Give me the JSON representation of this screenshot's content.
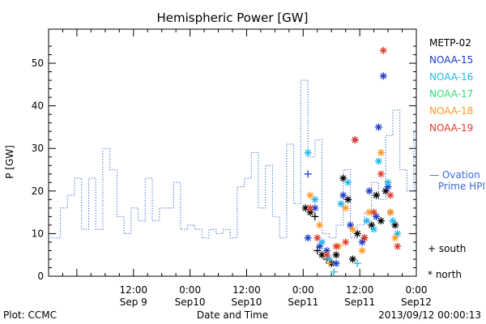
{
  "chart_data": {
    "type": "scatter",
    "title": "Hemispheric Power [GW]",
    "xlabel": "Date and Time",
    "ylabel": "P [GW]",
    "ylim": [
      0,
      58
    ],
    "xlim": [
      "2013-09-08 18:00",
      "2013-09-12 00:00"
    ],
    "y_ticks": [
      0,
      10,
      20,
      30,
      40,
      50
    ],
    "x_ticks": [
      {
        "x": "2013-09-09 12:00",
        "line1": "12:00",
        "line2": "Sep 9"
      },
      {
        "x": "2013-09-10 00:00",
        "line1": "0:00",
        "line2": "Sep10"
      },
      {
        "x": "2013-09-10 12:00",
        "line1": "12:00",
        "line2": "Sep10"
      },
      {
        "x": "2013-09-11 00:00",
        "line1": "0:00",
        "line2": "Sep11"
      },
      {
        "x": "2013-09-11 12:00",
        "line1": "12:00",
        "line2": "Sep11"
      },
      {
        "x": "2013-09-12 00:00",
        "line1": "0:00",
        "line2": "Sep12"
      }
    ],
    "legend": [
      {
        "name": "METP-02",
        "color": "#000000"
      },
      {
        "name": "NOAA-15",
        "color": "#1a3acc"
      },
      {
        "name": "NOAA-16",
        "color": "#22b8e8"
      },
      {
        "name": "NOAA-17",
        "color": "#33dd77"
      },
      {
        "name": "NOAA-18",
        "color": "#ff9922"
      },
      {
        "name": "NOAA-19",
        "color": "#e23a2a"
      }
    ],
    "ovation": {
      "name": "Ovation Prime HPI",
      "color": "#3a6ad8",
      "x": [
        "2013-09-08 18:00",
        "2013-09-08 20:30",
        "2013-09-08 22:00",
        "2013-09-08 23:30",
        "2013-09-09 01:00",
        "2013-09-09 02:30",
        "2013-09-09 04:00",
        "2013-09-09 05:30",
        "2013-09-09 07:00",
        "2013-09-09 08:30",
        "2013-09-09 10:00",
        "2013-09-09 11:30",
        "2013-09-09 13:00",
        "2013-09-09 14:30",
        "2013-09-09 16:00",
        "2013-09-09 17:30",
        "2013-09-09 19:00",
        "2013-09-09 20:30",
        "2013-09-09 22:00",
        "2013-09-09 23:30",
        "2013-09-10 01:00",
        "2013-09-10 02:30",
        "2013-09-10 04:00",
        "2013-09-10 05:30",
        "2013-09-10 07:00",
        "2013-09-10 08:30",
        "2013-09-10 10:00",
        "2013-09-10 11:30",
        "2013-09-10 13:00",
        "2013-09-10 14:30",
        "2013-09-10 16:00",
        "2013-09-10 17:30",
        "2013-09-10 19:00",
        "2013-09-10 20:30",
        "2013-09-10 22:00",
        "2013-09-10 23:30",
        "2013-09-11 01:00",
        "2013-09-11 02:30",
        "2013-09-11 04:00",
        "2013-09-11 05:30",
        "2013-09-11 07:00",
        "2013-09-11 08:30",
        "2013-09-11 10:00",
        "2013-09-11 11:30",
        "2013-09-11 13:00",
        "2013-09-11 14:30",
        "2013-09-11 16:00",
        "2013-09-11 17:30",
        "2013-09-11 19:00",
        "2013-09-11 20:30",
        "2013-09-11 22:00",
        "2013-09-11 23:30"
      ],
      "y": [
        9,
        16,
        19,
        23,
        11,
        23,
        11,
        30,
        25,
        14,
        10,
        16,
        13,
        23,
        13,
        16,
        16,
        22,
        11,
        12,
        11,
        9,
        11,
        10,
        11,
        9,
        21,
        23,
        29,
        16,
        26,
        14,
        9,
        31,
        17,
        46,
        28,
        32,
        10,
        9,
        12,
        25,
        9,
        12,
        15,
        22,
        18,
        33,
        39,
        25,
        20,
        34
      ]
    },
    "points": [
      {
        "sat": "METP-02",
        "marker": "north",
        "x": "2013-09-11 00:30",
        "y": 16
      },
      {
        "sat": "METP-02",
        "marker": "north",
        "x": "2013-09-11 01:30",
        "y": 15
      },
      {
        "sat": "METP-02",
        "marker": "south",
        "x": "2013-09-11 02:30",
        "y": 14
      },
      {
        "sat": "METP-02",
        "marker": "south",
        "x": "2013-09-11 03:00",
        "y": 6
      },
      {
        "sat": "METP-02",
        "marker": "north",
        "x": "2013-09-11 04:00",
        "y": 5
      },
      {
        "sat": "METP-02",
        "marker": "south",
        "x": "2013-09-11 05:00",
        "y": 4
      },
      {
        "sat": "METP-02",
        "marker": "north",
        "x": "2013-09-11 06:00",
        "y": 3
      },
      {
        "sat": "METP-02",
        "marker": "north",
        "x": "2013-09-11 07:00",
        "y": 5
      },
      {
        "sat": "METP-02",
        "marker": "north",
        "x": "2013-09-11 08:30",
        "y": 23
      },
      {
        "sat": "METP-02",
        "marker": "north",
        "x": "2013-09-11 09:30",
        "y": 18
      },
      {
        "sat": "METP-02",
        "marker": "north",
        "x": "2013-09-11 10:30",
        "y": 4
      },
      {
        "sat": "METP-02",
        "marker": "north",
        "x": "2013-09-11 11:30",
        "y": 10
      },
      {
        "sat": "METP-02",
        "marker": "north",
        "x": "2013-09-11 13:00",
        "y": 9
      },
      {
        "sat": "METP-02",
        "marker": "north",
        "x": "2013-09-11 14:30",
        "y": 12
      },
      {
        "sat": "METP-02",
        "marker": "north",
        "x": "2013-09-11 15:30",
        "y": 19
      },
      {
        "sat": "METP-02",
        "marker": "north",
        "x": "2013-09-11 16:30",
        "y": 13
      },
      {
        "sat": "METP-02",
        "marker": "north",
        "x": "2013-09-11 17:30",
        "y": 20
      },
      {
        "sat": "METP-02",
        "marker": "north",
        "x": "2013-09-11 18:30",
        "y": 15
      },
      {
        "sat": "METP-02",
        "marker": "north",
        "x": "2013-09-11 19:30",
        "y": 12
      },
      {
        "sat": "NOAA-15",
        "marker": "south",
        "x": "2013-09-11 01:00",
        "y": 24
      },
      {
        "sat": "NOAA-15",
        "marker": "north",
        "x": "2013-09-11 01:00",
        "y": 9
      },
      {
        "sat": "NOAA-15",
        "marker": "north",
        "x": "2013-09-11 02:30",
        "y": 16
      },
      {
        "sat": "NOAA-15",
        "marker": "north",
        "x": "2013-09-11 03:30",
        "y": 7
      },
      {
        "sat": "NOAA-15",
        "marker": "north",
        "x": "2013-09-11 05:00",
        "y": 6
      },
      {
        "sat": "NOAA-15",
        "marker": "north",
        "x": "2013-09-11 07:00",
        "y": 3
      },
      {
        "sat": "NOAA-15",
        "marker": "north",
        "x": "2013-09-11 08:30",
        "y": 19
      },
      {
        "sat": "NOAA-15",
        "marker": "north",
        "x": "2013-09-11 10:00",
        "y": 12
      },
      {
        "sat": "NOAA-15",
        "marker": "north",
        "x": "2013-09-11 11:00",
        "y": 32
      },
      {
        "sat": "NOAA-15",
        "marker": "north",
        "x": "2013-09-11 12:30",
        "y": 8
      },
      {
        "sat": "NOAA-15",
        "marker": "north",
        "x": "2013-09-11 14:00",
        "y": 20
      },
      {
        "sat": "NOAA-15",
        "marker": "north",
        "x": "2013-09-11 15:30",
        "y": 14
      },
      {
        "sat": "NOAA-15",
        "marker": "north",
        "x": "2013-09-11 16:00",
        "y": 35
      },
      {
        "sat": "NOAA-15",
        "marker": "north",
        "x": "2013-09-11 17:00",
        "y": 47
      },
      {
        "sat": "NOAA-15",
        "marker": "north",
        "x": "2013-09-11 18:00",
        "y": 21
      },
      {
        "sat": "NOAA-16",
        "marker": "north",
        "x": "2013-09-11 01:00",
        "y": 29
      },
      {
        "sat": "NOAA-16",
        "marker": "north",
        "x": "2013-09-11 02:30",
        "y": 18
      },
      {
        "sat": "NOAA-16",
        "marker": "north",
        "x": "2013-09-11 04:00",
        "y": 8
      },
      {
        "sat": "NOAA-16",
        "marker": "north",
        "x": "2013-09-11 05:30",
        "y": 4
      },
      {
        "sat": "NOAA-16",
        "marker": "south",
        "x": "2013-09-11 06:30",
        "y": 1
      },
      {
        "sat": "NOAA-16",
        "marker": "north",
        "x": "2013-09-11 08:00",
        "y": 17
      },
      {
        "sat": "NOAA-16",
        "marker": "north",
        "x": "2013-09-11 09:30",
        "y": 22
      },
      {
        "sat": "NOAA-16",
        "marker": "south",
        "x": "2013-09-11 11:30",
        "y": 3
      },
      {
        "sat": "NOAA-16",
        "marker": "north",
        "x": "2013-09-11 13:30",
        "y": 13
      },
      {
        "sat": "NOAA-16",
        "marker": "north",
        "x": "2013-09-11 15:00",
        "y": 11
      },
      {
        "sat": "NOAA-16",
        "marker": "north",
        "x": "2013-09-11 16:00",
        "y": 27
      },
      {
        "sat": "NOAA-16",
        "marker": "north",
        "x": "2013-09-11 18:00",
        "y": 22
      },
      {
        "sat": "NOAA-16",
        "marker": "north",
        "x": "2013-09-11 19:00",
        "y": 13
      },
      {
        "sat": "NOAA-16",
        "marker": "north",
        "x": "2013-09-11 20:00",
        "y": 10
      },
      {
        "sat": "NOAA-18",
        "marker": "north",
        "x": "2013-09-11 01:30",
        "y": 19
      },
      {
        "sat": "NOAA-18",
        "marker": "north",
        "x": "2013-09-11 03:30",
        "y": 12
      },
      {
        "sat": "NOAA-18",
        "marker": "south",
        "x": "2013-09-11 05:30",
        "y": 3
      },
      {
        "sat": "NOAA-18",
        "marker": "north",
        "x": "2013-09-11 07:30",
        "y": 7
      },
      {
        "sat": "NOAA-18",
        "marker": "north",
        "x": "2013-09-11 09:00",
        "y": 16
      },
      {
        "sat": "NOAA-18",
        "marker": "north",
        "x": "2013-09-11 10:30",
        "y": 11
      },
      {
        "sat": "NOAA-18",
        "marker": "north",
        "x": "2013-09-11 12:30",
        "y": 6
      },
      {
        "sat": "NOAA-18",
        "marker": "north",
        "x": "2013-09-11 14:00",
        "y": 15
      },
      {
        "sat": "NOAA-18",
        "marker": "north",
        "x": "2013-09-11 16:30",
        "y": 29
      },
      {
        "sat": "NOAA-18",
        "marker": "north",
        "x": "2013-09-11 18:30",
        "y": 15
      },
      {
        "sat": "NOAA-18",
        "marker": "north",
        "x": "2013-09-11 19:30",
        "y": 9
      },
      {
        "sat": "NOAA-19",
        "marker": "north",
        "x": "2013-09-11 01:30",
        "y": 16
      },
      {
        "sat": "NOAA-19",
        "marker": "north",
        "x": "2013-09-11 03:00",
        "y": 9
      },
      {
        "sat": "NOAA-19",
        "marker": "north",
        "x": "2013-09-11 05:00",
        "y": 5
      },
      {
        "sat": "NOAA-19",
        "marker": "north",
        "x": "2013-09-11 07:00",
        "y": 7
      },
      {
        "sat": "NOAA-19",
        "marker": "north",
        "x": "2013-09-11 09:00",
        "y": 8
      },
      {
        "sat": "NOAA-19",
        "marker": "north",
        "x": "2013-09-11 11:00",
        "y": 32
      },
      {
        "sat": "NOAA-19",
        "marker": "north",
        "x": "2013-09-11 13:00",
        "y": 9
      },
      {
        "sat": "NOAA-19",
        "marker": "north",
        "x": "2013-09-11 15:00",
        "y": 15
      },
      {
        "sat": "NOAA-19",
        "marker": "north",
        "x": "2013-09-11 16:30",
        "y": 24
      },
      {
        "sat": "NOAA-19",
        "marker": "north",
        "x": "2013-09-11 17:00",
        "y": 53
      },
      {
        "sat": "NOAA-19",
        "marker": "north",
        "x": "2013-09-11 18:30",
        "y": 19
      },
      {
        "sat": "NOAA-19",
        "marker": "north",
        "x": "2013-09-11 20:00",
        "y": 7
      }
    ]
  },
  "ovation_label": {
    "line1": "— Ovation",
    "line2": "Prime HPI"
  },
  "marker_key": {
    "south_label": "+ south",
    "north_label": "* north"
  },
  "footer": {
    "plot_source": "Plot: CCMC",
    "timestamp": "2013/09/12 00:00:13"
  }
}
